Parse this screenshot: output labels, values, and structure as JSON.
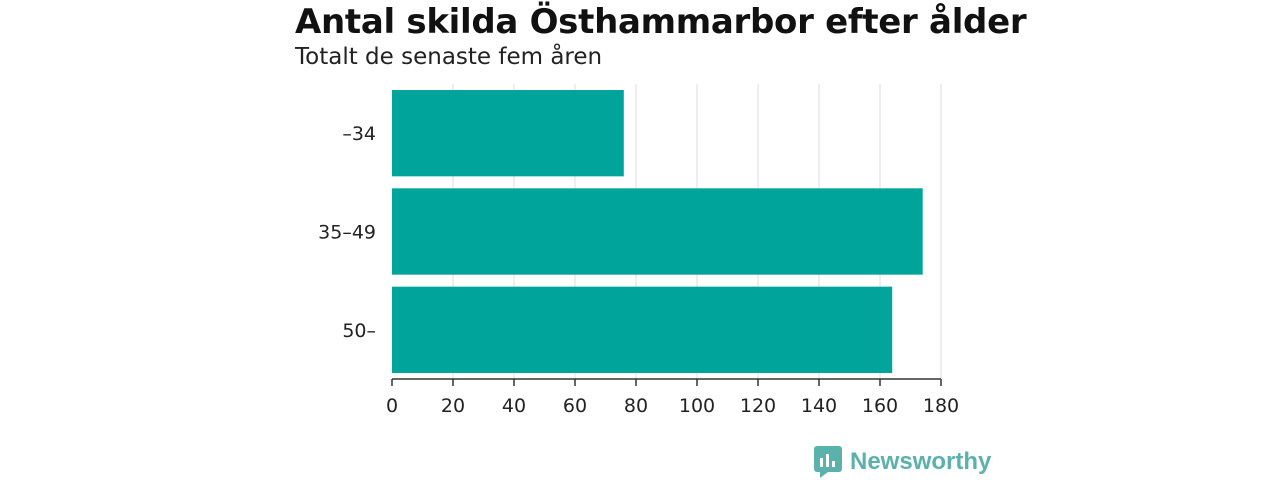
{
  "chart_data": {
    "type": "bar",
    "orientation": "horizontal",
    "title": "Antal skilda Östhammarbor efter ålder",
    "subtitle": "Totalt de senaste fem åren",
    "categories": [
      "–34",
      "35–49",
      "50–"
    ],
    "values": [
      76,
      174,
      164
    ],
    "xlim": [
      0,
      180
    ],
    "xticks": [
      0,
      20,
      40,
      60,
      80,
      100,
      120,
      140,
      160,
      180
    ],
    "xlabel": "",
    "ylabel": "",
    "grid": "vertical",
    "bar_color": "#00a49a",
    "grid_color": "#dddddd"
  },
  "logo": {
    "text": "Newsworthy",
    "color": "#5bb2ad"
  }
}
